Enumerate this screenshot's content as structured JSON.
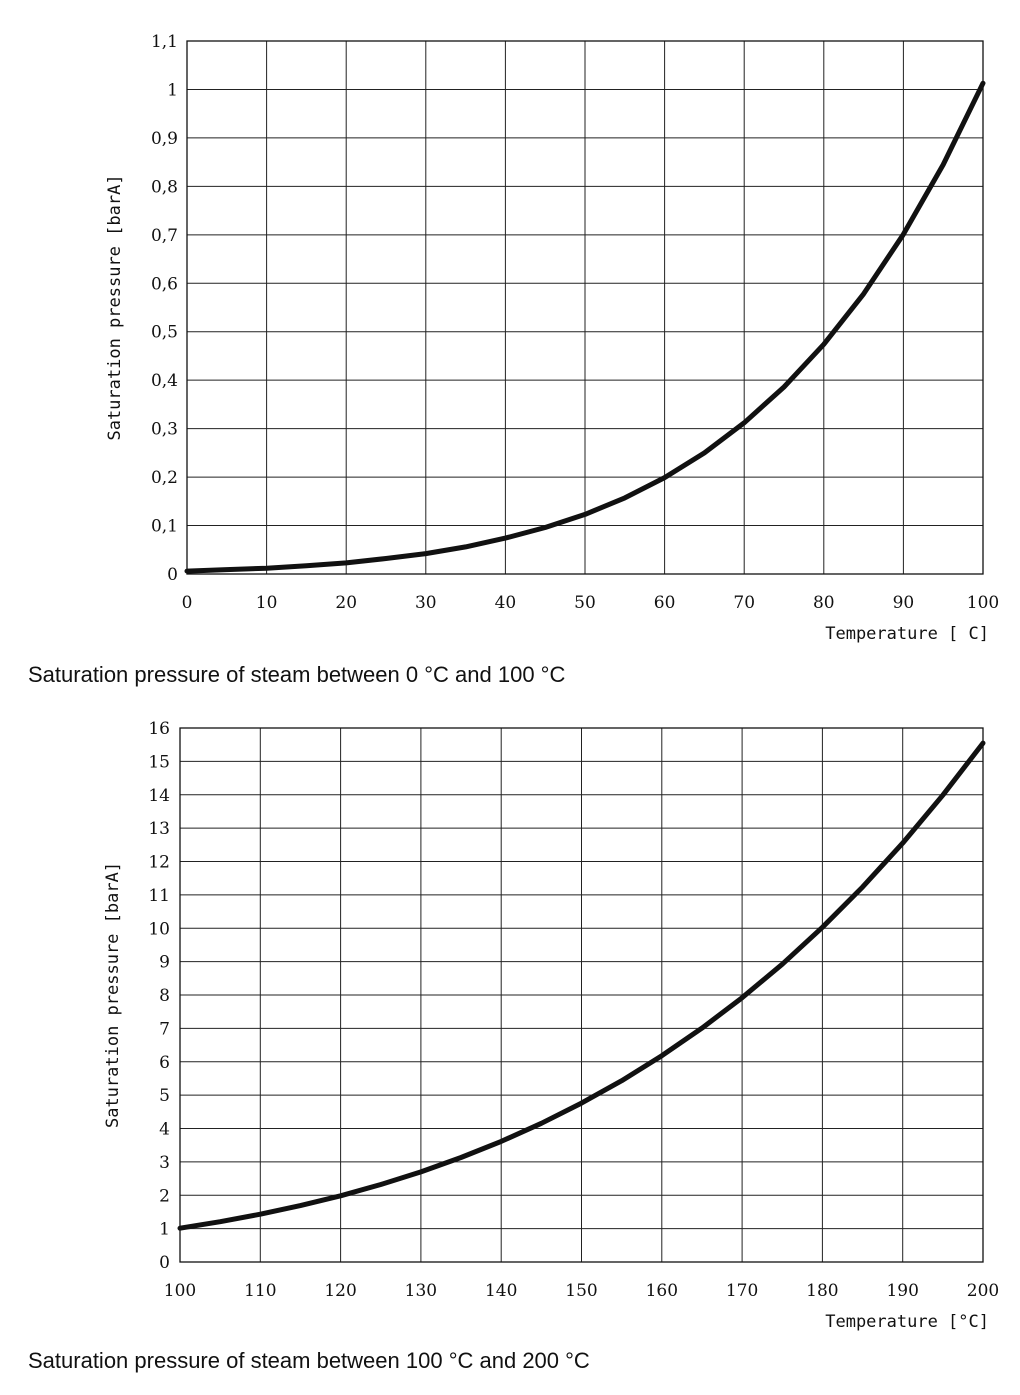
{
  "chart_data": [
    {
      "type": "line",
      "caption": "Saturation pressure of steam between 0 °C and 100 °C",
      "xlabel": "Temperature [ C]",
      "ylabel": "Saturation pressure [barA]",
      "xlim": [
        0,
        100
      ],
      "ylim": [
        0,
        1.1
      ],
      "x_ticks": [
        "0",
        "10",
        "20",
        "30",
        "40",
        "50",
        "60",
        "70",
        "80",
        "90",
        "100"
      ],
      "y_ticks": [
        "0",
        "0,1",
        "0,2",
        "0,3",
        "0,4",
        "0,5",
        "0,6",
        "0,7",
        "0,8",
        "0,9",
        "1",
        "1,1"
      ],
      "grid": true,
      "line_color": "#111111",
      "series": [
        {
          "x": [
            0,
            5,
            10,
            15,
            20,
            25,
            30,
            35,
            40,
            45,
            50,
            55,
            60,
            65,
            70,
            75,
            80,
            85,
            90,
            95,
            100
          ],
          "values": [
            0.006,
            0.009,
            0.012,
            0.017,
            0.023,
            0.032,
            0.042,
            0.056,
            0.074,
            0.096,
            0.123,
            0.157,
            0.199,
            0.25,
            0.312,
            0.386,
            0.474,
            0.578,
            0.701,
            0.845,
            1.013
          ]
        }
      ]
    },
    {
      "type": "line",
      "caption": "Saturation pressure of steam between 100 °C and 200 °C",
      "xlabel": "Temperature [°C]",
      "ylabel": "Saturation pressure [barA]",
      "xlim": [
        100,
        200
      ],
      "ylim": [
        0,
        16
      ],
      "x_ticks": [
        "100",
        "110",
        "120",
        "130",
        "140",
        "150",
        "160",
        "170",
        "180",
        "190",
        "200"
      ],
      "y_ticks": [
        "0",
        "1",
        "2",
        "3",
        "4",
        "5",
        "6",
        "7",
        "8",
        "9",
        "10",
        "11",
        "12",
        "13",
        "14",
        "15",
        "16"
      ],
      "grid": true,
      "line_color": "#111111",
      "series": [
        {
          "x": [
            100,
            105,
            110,
            115,
            120,
            125,
            130,
            135,
            140,
            145,
            150,
            155,
            160,
            165,
            170,
            175,
            180,
            185,
            190,
            195,
            200
          ],
          "values": [
            1.013,
            1.208,
            1.433,
            1.691,
            1.985,
            2.321,
            2.701,
            3.13,
            3.614,
            4.155,
            4.76,
            5.433,
            6.181,
            7.008,
            7.92,
            8.924,
            10.027,
            11.233,
            12.551,
            13.987,
            15.549
          ]
        }
      ]
    }
  ]
}
